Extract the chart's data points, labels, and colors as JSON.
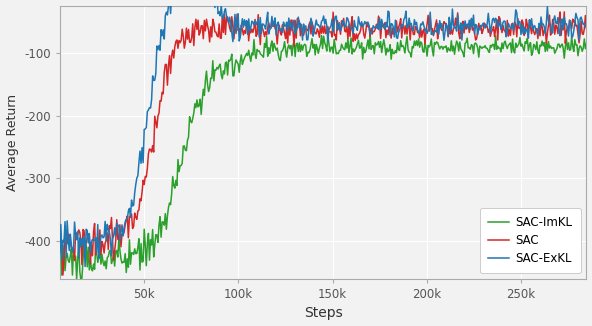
{
  "title": "",
  "xlabel": "Steps",
  "ylabel": "Average Return",
  "xlim": [
    5000,
    285000
  ],
  "ylim": [
    -460,
    -25
  ],
  "yticks": [
    -400,
    -300,
    -200,
    -100
  ],
  "xticks": [
    50000,
    100000,
    150000,
    200000,
    250000
  ],
  "xtick_labels": [
    "50k",
    "100k",
    "150k",
    "200k",
    "250k"
  ],
  "background_color": "#f2f2f2",
  "grid_color": "#ffffff",
  "legend_entries": [
    "SAC-ImKL",
    "SAC",
    "SAC-ExKL"
  ],
  "line_colors": [
    "#2ca02c",
    "#d62728",
    "#1f77b4"
  ],
  "line_width": 1.1,
  "seed": 42,
  "n_points": 500
}
